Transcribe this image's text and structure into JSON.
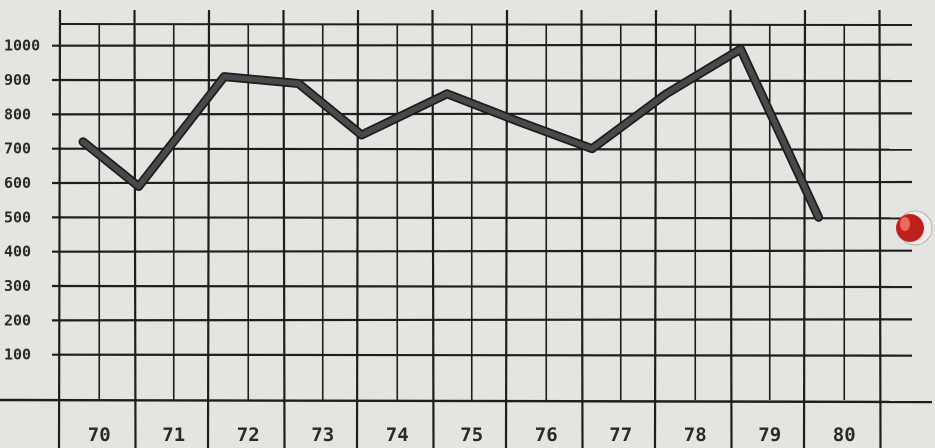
{
  "chart_data": {
    "type": "line",
    "title": "",
    "xlabel": "",
    "ylabel": "",
    "categories": [
      "70",
      "71",
      "72",
      "73",
      "74",
      "75",
      "76",
      "77",
      "78",
      "79",
      "80"
    ],
    "y_ticks": [
      "1000",
      "900",
      "800",
      "700",
      "600",
      "500",
      "400",
      "300",
      "200",
      "100"
    ],
    "ylim": [
      0,
      1050
    ],
    "grid": true,
    "series": [
      {
        "x": [
          70,
          70.75,
          71.9,
          72.9,
          73.75,
          74.9,
          75.85,
          76.85,
          77.85,
          78.85,
          79.9
        ],
        "values": [
          720,
          590,
          910,
          890,
          740,
          860,
          780,
          700,
          860,
          990,
          500
        ]
      }
    ],
    "colors": {
      "line": "#4a484b",
      "line_edge": "#1c1c1c",
      "paper": "#e4e4e1",
      "grid": "#1e1e1e",
      "ink": "#2a2a2a",
      "pin": "#c0201c"
    }
  }
}
